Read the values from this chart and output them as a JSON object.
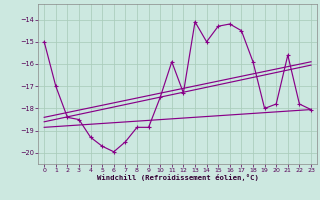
{
  "xlabel": "Windchill (Refroidissement éolien,°C)",
  "xlim": [
    -0.5,
    23.5
  ],
  "ylim": [
    -20.5,
    -13.3
  ],
  "yticks": [
    -20,
    -19,
    -18,
    -17,
    -16,
    -15,
    -14
  ],
  "xticks": [
    0,
    1,
    2,
    3,
    4,
    5,
    6,
    7,
    8,
    9,
    10,
    11,
    12,
    13,
    14,
    15,
    16,
    17,
    18,
    19,
    20,
    21,
    22,
    23
  ],
  "background_color": "#cce8e0",
  "grid_color": "#aaccbb",
  "line_color": "#880088",
  "wc": [
    -15.0,
    -17.0,
    -18.4,
    -18.5,
    -19.3,
    -19.7,
    -19.95,
    -19.5,
    -18.85,
    -18.85,
    -17.5,
    -15.9,
    -17.3,
    -14.1,
    -15.0,
    -14.3,
    -14.2,
    -14.5,
    -15.9,
    -18.0,
    -17.8,
    -15.6,
    -17.8,
    -18.05
  ],
  "trend1_x": [
    0,
    23
  ],
  "trend1_y": [
    -18.4,
    -15.9
  ],
  "trend2_x": [
    0,
    23
  ],
  "trend2_y": [
    -18.6,
    -16.05
  ],
  "trend3_x": [
    0,
    23
  ],
  "trend3_y": [
    -18.85,
    -18.05
  ]
}
